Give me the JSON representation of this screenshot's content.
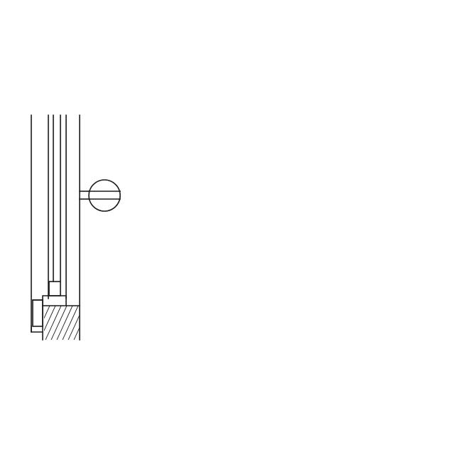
{
  "drawing": {
    "kind": "technical section detail",
    "colors": {
      "line": "#1a1a1a",
      "background": "#ffffff"
    },
    "hatch_pattern": "diagonal",
    "callout_symbol": "slotted-screw-head-icon",
    "labels": []
  }
}
